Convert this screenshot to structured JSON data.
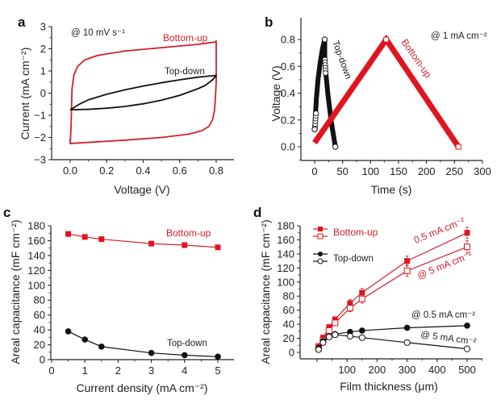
{
  "colors": {
    "red": "#e0141e",
    "red_line": "#d0202a",
    "black": "#111111"
  },
  "chart_data": [
    {
      "panel": "a",
      "type": "line",
      "xlabel": "Voltage (V)",
      "ylabel": "Current (mA cm⁻²)",
      "xlim": [
        -0.1,
        0.9
      ],
      "ylim": [
        -3,
        3
      ],
      "xticks": [
        "0.0",
        "0.2",
        "0.4",
        "0.6",
        "0.8"
      ],
      "xtick_values": [
        0,
        0.2,
        0.4,
        0.6,
        0.8
      ],
      "yticks": [
        "−3",
        "−2",
        "−1",
        "0",
        "1",
        "2",
        "3"
      ],
      "ytick_values": [
        -3,
        -2,
        -1,
        0,
        1,
        2,
        3
      ],
      "annotations": [
        {
          "text": "@ 10 mV s⁻¹",
          "color": "black"
        },
        {
          "text": "Bottom-up",
          "color": "red"
        },
        {
          "text": "Top-down",
          "color": "black"
        }
      ],
      "series": [
        {
          "name": "Bottom-up",
          "color": "red",
          "x": [
            0.0,
            0.005,
            0.01,
            0.02,
            0.04,
            0.08,
            0.15,
            0.3,
            0.5,
            0.7,
            0.79,
            0.8,
            0.8,
            0.795,
            0.79,
            0.78,
            0.76,
            0.72,
            0.65,
            0.5,
            0.3,
            0.1,
            0.0,
            0.0
          ],
          "y": [
            -2.3,
            -1.5,
            0.2,
            0.8,
            1.2,
            1.5,
            1.7,
            1.9,
            2.05,
            2.2,
            2.3,
            2.35,
            0.5,
            -0.3,
            -0.8,
            -1.2,
            -1.5,
            -1.7,
            -1.85,
            -2.0,
            -2.12,
            -2.22,
            -2.27,
            -2.05
          ]
        },
        {
          "name": "Top-down",
          "color": "black",
          "x": [
            0.0,
            0.05,
            0.1,
            0.2,
            0.3,
            0.4,
            0.5,
            0.6,
            0.7,
            0.8,
            0.78,
            0.74,
            0.7,
            0.6,
            0.5,
            0.4,
            0.3,
            0.2,
            0.1,
            0.0
          ],
          "y": [
            -0.75,
            -0.5,
            -0.3,
            -0.05,
            0.15,
            0.32,
            0.47,
            0.6,
            0.72,
            0.8,
            0.6,
            0.35,
            0.2,
            -0.1,
            -0.32,
            -0.48,
            -0.6,
            -0.68,
            -0.73,
            -0.75
          ]
        }
      ]
    },
    {
      "panel": "b",
      "type": "line",
      "xlabel": "Time (s)",
      "ylabel": "Voltage (V)",
      "xlim": [
        -25,
        300
      ],
      "ylim": [
        -0.1,
        0.9
      ],
      "xticks": [
        "0",
        "50",
        "100",
        "150",
        "200",
        "250",
        "300"
      ],
      "xtick_values": [
        0,
        50,
        100,
        150,
        200,
        250,
        300
      ],
      "yticks": [
        "0.0",
        "0.2",
        "0.4",
        "0.6",
        "0.8"
      ],
      "ytick_values": [
        0,
        0.2,
        0.4,
        0.6,
        0.8
      ],
      "annotations": [
        {
          "text": "@ 1 mA cm⁻²",
          "color": "black"
        },
        {
          "text": "Top-down",
          "color": "black"
        },
        {
          "text": "Bottom-up",
          "color": "red"
        }
      ],
      "series": [
        {
          "name": "Top-down",
          "color": "black",
          "x": [
            0,
            1,
            3,
            6,
            10,
            14,
            18,
            18,
            20,
            24,
            30,
            37
          ],
          "y": [
            0.13,
            0.2,
            0.35,
            0.5,
            0.63,
            0.73,
            0.8,
            0.65,
            0.55,
            0.38,
            0.18,
            0.0
          ]
        },
        {
          "name": "Bottom-up",
          "color": "red",
          "x": [
            0,
            128,
            257
          ],
          "y": [
            0.03,
            0.8,
            0.0
          ]
        }
      ]
    },
    {
      "panel": "c",
      "type": "line",
      "xlabel": "Current density (mA cm⁻²)",
      "ylabel": "Areal capacitance (mF cm⁻²)",
      "xlim": [
        0,
        5.5
      ],
      "ylim": [
        0,
        180
      ],
      "xticks": [
        "0",
        "1",
        "2",
        "3",
        "4",
        "5"
      ],
      "xtick_values": [
        0,
        1,
        2,
        3,
        4,
        5
      ],
      "yticks": [
        "0",
        "20",
        "40",
        "60",
        "80",
        "100",
        "120",
        "140",
        "160",
        "180"
      ],
      "ytick_values": [
        0,
        20,
        40,
        60,
        80,
        100,
        120,
        140,
        160,
        180
      ],
      "annotations": [
        {
          "text": "Bottom-up",
          "color": "red"
        },
        {
          "text": "Top-down",
          "color": "black"
        }
      ],
      "series": [
        {
          "name": "Bottom-up",
          "color": "red",
          "marker": "square-filled",
          "x": [
            0.5,
            1,
            1.5,
            3,
            4,
            5
          ],
          "y": [
            169,
            165,
            162,
            156,
            154,
            151
          ]
        },
        {
          "name": "Top-down",
          "color": "black",
          "marker": "circle-filled",
          "x": [
            0.5,
            1,
            1.5,
            3,
            4,
            5
          ],
          "y": [
            38,
            27,
            17.5,
            9,
            6,
            4
          ]
        }
      ]
    },
    {
      "panel": "d",
      "type": "line",
      "xlabel": "Film thickness (μm)",
      "ylabel": "Areal capacitance (mF cm⁻²)",
      "xlim": [
        -55,
        555
      ],
      "ylim": [
        0,
        180
      ],
      "xticks": [
        "100",
        "200",
        "300",
        "400",
        "500"
      ],
      "xtick_values": [
        100,
        200,
        300,
        400,
        500
      ],
      "yticks": [
        "0",
        "20",
        "40",
        "60",
        "80",
        "100",
        "120",
        "140",
        "160",
        "180"
      ],
      "ytick_values": [
        0,
        20,
        40,
        60,
        80,
        100,
        120,
        140,
        160,
        180
      ],
      "legend": {
        "placement": "top-left",
        "entries": [
          {
            "label": "Bottom-up",
            "color": "red"
          },
          {
            "label": "Top-down",
            "color": "black"
          }
        ]
      },
      "annotations": [
        {
          "text": "0.5 mA cm⁻²",
          "color": "red"
        },
        {
          "text": "@ 5 mA cm⁻²",
          "color": "red"
        },
        {
          "text": "@ 0.5 mA cm⁻²",
          "color": "black"
        },
        {
          "text": "@ 5 mA cm⁻²",
          "color": "black"
        }
      ],
      "series": [
        {
          "name": "Bottom-up @ 0.5 mA cm⁻²",
          "color": "red",
          "marker": "square-filled",
          "x": [
            5,
            20,
            40,
            60,
            110,
            150,
            300,
            500
          ],
          "y": [
            9,
            21,
            36,
            47,
            70,
            85,
            130,
            170
          ],
          "err": [
            2,
            2,
            3,
            3,
            5,
            6,
            7,
            8
          ]
        },
        {
          "name": "Bottom-up @ 5 mA cm⁻²",
          "color": "red",
          "marker": "square-open",
          "x": [
            5,
            20,
            40,
            60,
            110,
            150,
            300,
            500
          ],
          "y": [
            6,
            17,
            31,
            42,
            63,
            76,
            116,
            150
          ],
          "err": [
            2,
            2,
            3,
            3,
            5,
            6,
            8,
            9
          ]
        },
        {
          "name": "Top-down @ 0.5 mA cm⁻²",
          "color": "black",
          "marker": "circle-filled",
          "x": [
            5,
            20,
            40,
            60,
            110,
            150,
            300,
            500
          ],
          "y": [
            6,
            16,
            23,
            26,
            29,
            31,
            35,
            38
          ],
          "err": [
            1,
            1,
            1,
            1,
            2,
            2,
            3,
            3
          ]
        },
        {
          "name": "Top-down @ 5 mA cm⁻²",
          "color": "black",
          "marker": "circle-open",
          "x": [
            5,
            20,
            40,
            60,
            110,
            150,
            300,
            500
          ],
          "y": [
            4,
            14,
            22,
            25,
            23,
            21,
            14,
            5
          ],
          "err": [
            1,
            1,
            1,
            1,
            1,
            1,
            1,
            1
          ]
        }
      ]
    }
  ]
}
